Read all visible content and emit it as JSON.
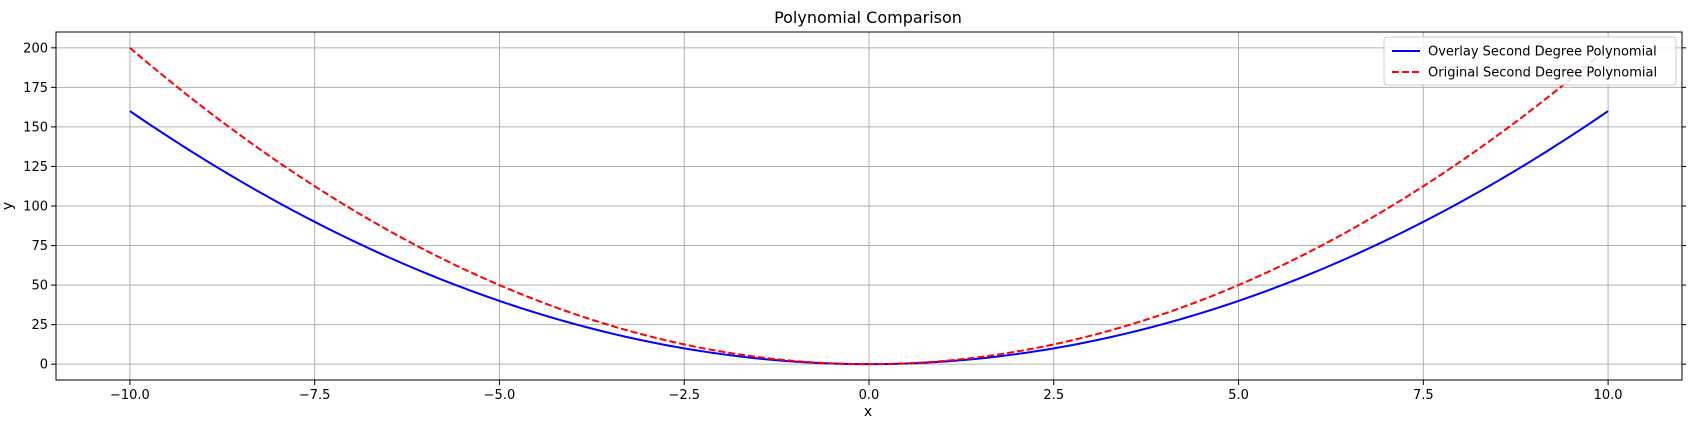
{
  "chart_data": {
    "type": "line",
    "title": "Polynomial Comparison",
    "xlabel": "x",
    "ylabel": "y",
    "xlim": [
      -11,
      11
    ],
    "ylim": [
      -10,
      210
    ],
    "xticks": [
      -10.0,
      -7.5,
      -5.0,
      -2.5,
      0.0,
      2.5,
      5.0,
      7.5,
      10.0
    ],
    "xtick_labels": [
      "−10.0",
      "−7.5",
      "−5.0",
      "−2.5",
      "0.0",
      "2.5",
      "5.0",
      "7.5",
      "10.0"
    ],
    "yticks": [
      0,
      25,
      50,
      75,
      100,
      125,
      150,
      175,
      200
    ],
    "ytick_labels": [
      "0",
      "25",
      "50",
      "75",
      "100",
      "125",
      "150",
      "175",
      "200"
    ],
    "grid": true,
    "legend_position": "top-right",
    "series": [
      {
        "name": "Overlay Second Degree Polynomial",
        "color": "#0000ff",
        "style": "solid",
        "x": [
          -10,
          -9,
          -8,
          -7,
          -6,
          -5,
          -4,
          -3,
          -2,
          -1,
          0,
          1,
          2,
          3,
          4,
          5,
          6,
          7,
          8,
          9,
          10
        ],
        "y": [
          160,
          129.6,
          102.4,
          78.4,
          57.6,
          40,
          25.6,
          14.4,
          6.4,
          1.6,
          0,
          1.6,
          6.4,
          14.4,
          25.6,
          40,
          57.6,
          78.4,
          102.4,
          129.6,
          160
        ]
      },
      {
        "name": "Original Second Degree Polynomial",
        "color": "#ff0000",
        "style": "dashed",
        "x": [
          -10,
          -9,
          -8,
          -7,
          -6,
          -5,
          -4,
          -3,
          -2,
          -1,
          0,
          1,
          2,
          3,
          4,
          5,
          6,
          7,
          8,
          9,
          10
        ],
        "y": [
          200,
          162,
          128,
          98,
          72,
          50,
          32,
          18,
          8,
          2,
          0,
          2,
          8,
          18,
          32,
          50,
          72,
          98,
          128,
          162,
          200
        ]
      }
    ]
  }
}
